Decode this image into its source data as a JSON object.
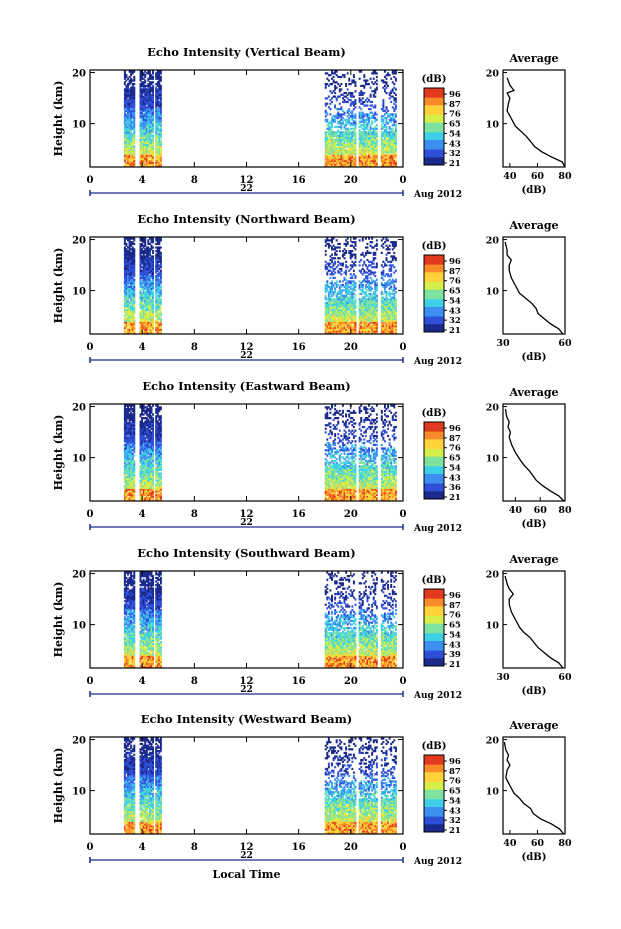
{
  "figure": {
    "xlabel": "Local Time",
    "day_label": "22",
    "month_year_label": "Aug 2012",
    "avg_title": "Average",
    "avg_xlabel": "(dB)",
    "colorbar_unit": "(dB)",
    "colorbar_colors": [
      "#1b2a8c",
      "#2f4fd8",
      "#3d8ff0",
      "#3fd0e8",
      "#7fe3a0",
      "#d6ee4a",
      "#ffd23a",
      "#f98a2a",
      "#e23a1e"
    ]
  },
  "chart_data": [
    {
      "type": "heatmap",
      "title": "Echo Intensity (Vertical Beam)",
      "xlabel": "",
      "ylabel": "Height (km)",
      "x_ticks": [
        "0",
        "4",
        "8",
        "12",
        "16",
        "20",
        "0"
      ],
      "y_ticks": [
        "10",
        "20"
      ],
      "xlim": [
        0,
        24
      ],
      "ylim": [
        1.5,
        20.5
      ],
      "colorbar_ticks": [
        "96",
        "87",
        "76",
        "65",
        "54",
        "43",
        "32",
        "21"
      ],
      "data_intervals": [
        [
          2.6,
          3.4
        ],
        [
          3.8,
          4.8
        ],
        [
          5.0,
          5.4
        ],
        [
          18.0,
          20.3
        ],
        [
          20.6,
          22.0
        ],
        [
          22.3,
          23.5
        ]
      ],
      "average_profile": {
        "title": "Average",
        "xlabel": "(dB)",
        "ylabel": "",
        "x_ticks": [
          "40",
          "60",
          "80"
        ],
        "xlim": [
          35,
          80
        ],
        "y_ticks": [
          "10",
          "20"
        ],
        "ylim": [
          1.5,
          20.5
        ],
        "x": [
          80,
          78,
          70,
          63,
          58,
          55,
          52,
          48,
          44,
          41,
          38,
          39,
          40,
          38,
          43,
          40,
          38
        ],
        "y": [
          1.5,
          2.5,
          3.5,
          4.5,
          5.5,
          6.5,
          7.5,
          8.5,
          9.5,
          11,
          12.5,
          14,
          15,
          16,
          16.5,
          17.5,
          19
        ]
      }
    },
    {
      "type": "heatmap",
      "title": "Echo Intensity (Northward Beam)",
      "xlabel": "",
      "ylabel": "Height (km)",
      "x_ticks": [
        "0",
        "4",
        "8",
        "12",
        "16",
        "20",
        "0"
      ],
      "y_ticks": [
        "10",
        "20"
      ],
      "xlim": [
        0,
        24
      ],
      "ylim": [
        1.5,
        20.5
      ],
      "colorbar_ticks": [
        "96",
        "87",
        "76",
        "65",
        "54",
        "43",
        "32",
        "21"
      ],
      "data_intervals": [
        [
          2.6,
          3.4
        ],
        [
          3.8,
          4.8
        ],
        [
          5.0,
          5.4
        ],
        [
          18.0,
          20.3
        ],
        [
          20.6,
          22.0
        ],
        [
          22.3,
          23.5
        ]
      ],
      "average_profile": {
        "title": "Average",
        "xlabel": "(dB)",
        "ylabel": "",
        "x_ticks": [
          "30",
          "60"
        ],
        "xlim": [
          30,
          60
        ],
        "y_ticks": [
          "10",
          "20"
        ],
        "ylim": [
          1.5,
          20.5
        ],
        "x": [
          59,
          57,
          53,
          50,
          47,
          46,
          44,
          41,
          38,
          36,
          34,
          33,
          33,
          34,
          32,
          32,
          31
        ],
        "y": [
          1.5,
          2.5,
          3.5,
          4.5,
          5.5,
          6.5,
          7.5,
          8.5,
          9.5,
          11,
          12.5,
          14,
          15,
          16,
          17,
          18,
          19.5
        ]
      }
    },
    {
      "type": "heatmap",
      "title": "Echo Intensity (Eastward Beam)",
      "xlabel": "",
      "ylabel": "Height (km)",
      "x_ticks": [
        "0",
        "4",
        "8",
        "12",
        "16",
        "20",
        "0"
      ],
      "y_ticks": [
        "10",
        "20"
      ],
      "xlim": [
        0,
        24
      ],
      "ylim": [
        1.5,
        20.5
      ],
      "colorbar_ticks": [
        "96",
        "87",
        "76",
        "65",
        "54",
        "43",
        "36",
        "21"
      ],
      "data_intervals": [
        [
          2.6,
          3.4
        ],
        [
          3.8,
          4.8
        ],
        [
          5.0,
          5.4
        ],
        [
          18.0,
          20.3
        ],
        [
          20.6,
          22.0
        ],
        [
          22.3,
          23.5
        ]
      ],
      "average_profile": {
        "title": "Average",
        "xlabel": "(dB)",
        "ylabel": "",
        "x_ticks": [
          "40",
          "60",
          "80"
        ],
        "xlim": [
          30,
          80
        ],
        "y_ticks": [
          "10",
          "20"
        ],
        "ylim": [
          1.5,
          20.5
        ],
        "x": [
          79,
          75,
          68,
          62,
          57,
          54,
          51,
          47,
          44,
          40,
          37,
          35,
          36,
          34,
          35,
          33,
          32
        ],
        "y": [
          1.5,
          2.5,
          3.5,
          4.5,
          5.5,
          6.5,
          7.5,
          8.5,
          9.5,
          11,
          12.5,
          14,
          15,
          16,
          17,
          18,
          19.5
        ]
      }
    },
    {
      "type": "heatmap",
      "title": "Echo Intensity (Southward Beam)",
      "xlabel": "",
      "ylabel": "Height (km)",
      "x_ticks": [
        "0",
        "4",
        "8",
        "12",
        "16",
        "20",
        "0"
      ],
      "y_ticks": [
        "10",
        "20"
      ],
      "xlim": [
        0,
        24
      ],
      "ylim": [
        1.5,
        20.5
      ],
      "colorbar_ticks": [
        "96",
        "87",
        "76",
        "65",
        "54",
        "43",
        "39",
        "21"
      ],
      "data_intervals": [
        [
          2.6,
          3.4
        ],
        [
          3.8,
          4.8
        ],
        [
          5.0,
          5.4
        ],
        [
          18.0,
          20.3
        ],
        [
          20.6,
          22.0
        ],
        [
          22.3,
          23.5
        ]
      ],
      "average_profile": {
        "title": "Average",
        "xlabel": "(dB)",
        "ylabel": "",
        "x_ticks": [
          "30",
          "60"
        ],
        "xlim": [
          30,
          60
        ],
        "y_ticks": [
          "10",
          "20"
        ],
        "ylim": [
          1.5,
          20.5
        ],
        "x": [
          59,
          57,
          53,
          50,
          47,
          45,
          43,
          40,
          38,
          36,
          34,
          33,
          33,
          35,
          33,
          32,
          31
        ],
        "y": [
          1.5,
          2.5,
          3.5,
          4.5,
          5.5,
          6.5,
          7.5,
          8.5,
          9.5,
          11,
          12.5,
          14,
          15,
          16,
          17,
          18,
          19.5
        ]
      }
    },
    {
      "type": "heatmap",
      "title": "Echo Intensity (Westward Beam)",
      "xlabel": "Local Time",
      "ylabel": "Height (km)",
      "x_ticks": [
        "0",
        "4",
        "8",
        "12",
        "16",
        "20",
        "0"
      ],
      "y_ticks": [
        "10",
        "20"
      ],
      "xlim": [
        0,
        24
      ],
      "ylim": [
        1.5,
        20.5
      ],
      "colorbar_ticks": [
        "96",
        "87",
        "76",
        "65",
        "54",
        "43",
        "32",
        "21"
      ],
      "data_intervals": [
        [
          2.6,
          3.4
        ],
        [
          3.8,
          4.8
        ],
        [
          5.0,
          5.4
        ],
        [
          18.0,
          20.3
        ],
        [
          20.6,
          22.0
        ],
        [
          22.3,
          23.5
        ]
      ],
      "average_profile": {
        "title": "Average",
        "xlabel": "(dB)",
        "ylabel": "",
        "x_ticks": [
          "40",
          "60",
          "80"
        ],
        "xlim": [
          35,
          80
        ],
        "y_ticks": [
          "10",
          "20"
        ],
        "ylim": [
          1.5,
          20.5
        ],
        "x": [
          79,
          76,
          70,
          62,
          57,
          55,
          50,
          47,
          43,
          40,
          37,
          38,
          40,
          38,
          39,
          37,
          36
        ],
        "y": [
          1.5,
          2.5,
          3.5,
          4.5,
          5.5,
          6.5,
          7.5,
          8.5,
          9.5,
          11,
          12.5,
          14,
          15,
          16,
          17,
          18,
          19.5
        ]
      }
    }
  ]
}
